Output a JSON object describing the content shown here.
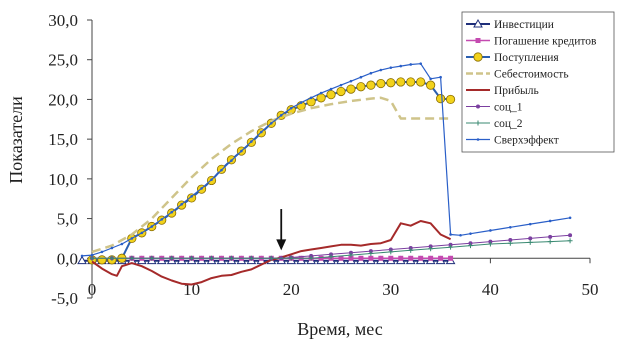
{
  "chart_data": {
    "type": "line",
    "xlabel": "Время, мес",
    "ylabel": "Показатели",
    "xlim": [
      0,
      50
    ],
    "ylim": [
      -5,
      30
    ],
    "x_ticks": [
      {
        "value": 0,
        "label": "0"
      },
      {
        "value": 10,
        "label": "10"
      },
      {
        "value": 20,
        "label": "20"
      },
      {
        "value": 30,
        "label": "30"
      },
      {
        "value": 40,
        "label": "40"
      },
      {
        "value": 50,
        "label": "50"
      }
    ],
    "y_ticks": [
      {
        "value": -5,
        "label": "-5,0"
      },
      {
        "value": 0,
        "label": "0,0"
      },
      {
        "value": 5,
        "label": "5,0"
      },
      {
        "value": 10,
        "label": "10,0"
      },
      {
        "value": 15,
        "label": "15,0"
      },
      {
        "value": 20,
        "label": "20,0"
      },
      {
        "value": 25,
        "label": "25,0"
      },
      {
        "value": 30,
        "label": "30,0"
      }
    ],
    "grid": false,
    "legend_position": "top-right",
    "annotation": {
      "type": "arrow",
      "x": 19,
      "y_from": 6.2,
      "y_to": 1.0
    },
    "series": [
      {
        "name": "Инвестиции",
        "color": "#1f2f7a",
        "style": "solid",
        "marker": "triangle-open",
        "width": 2,
        "points": [
          [
            -1,
            -0.3
          ],
          [
            0,
            -0.3
          ],
          [
            1,
            -0.3
          ],
          [
            2,
            -0.3
          ],
          [
            3,
            -0.3
          ],
          [
            4,
            -0.3
          ],
          [
            5,
            -0.3
          ],
          [
            6,
            -0.3
          ],
          [
            7,
            -0.3
          ],
          [
            8,
            -0.3
          ],
          [
            9,
            -0.3
          ],
          [
            10,
            -0.3
          ],
          [
            11,
            -0.3
          ],
          [
            12,
            -0.3
          ],
          [
            13,
            -0.3
          ],
          [
            14,
            -0.3
          ],
          [
            15,
            -0.3
          ],
          [
            16,
            -0.3
          ],
          [
            17,
            -0.3
          ],
          [
            18,
            -0.3
          ],
          [
            19,
            -0.3
          ],
          [
            20,
            -0.3
          ],
          [
            21,
            -0.3
          ],
          [
            22,
            -0.3
          ],
          [
            23,
            -0.3
          ],
          [
            24,
            -0.3
          ],
          [
            25,
            -0.3
          ],
          [
            26,
            -0.3
          ],
          [
            27,
            -0.3
          ],
          [
            28,
            -0.3
          ],
          [
            29,
            -0.3
          ],
          [
            30,
            -0.3
          ],
          [
            31,
            -0.3
          ],
          [
            32,
            -0.3
          ],
          [
            33,
            -0.3
          ],
          [
            34,
            -0.3
          ],
          [
            35,
            -0.3
          ],
          [
            36,
            -0.3
          ]
        ]
      },
      {
        "name": "Погашение кредитов",
        "color": "#c44ab0",
        "style": "solid",
        "marker": "square",
        "width": 1.5,
        "points": [
          [
            3,
            0
          ],
          [
            4,
            0
          ],
          [
            5,
            0
          ],
          [
            6,
            0
          ],
          [
            7,
            0
          ],
          [
            8,
            0
          ],
          [
            9,
            0
          ],
          [
            10,
            0
          ],
          [
            11,
            0
          ],
          [
            12,
            0
          ],
          [
            13,
            0
          ],
          [
            14,
            0
          ],
          [
            15,
            0
          ],
          [
            16,
            0
          ],
          [
            17,
            0
          ],
          [
            18,
            0
          ],
          [
            19,
            0
          ],
          [
            20,
            0
          ],
          [
            21,
            0
          ],
          [
            22,
            0
          ],
          [
            23,
            0
          ],
          [
            24,
            0
          ],
          [
            25,
            0
          ],
          [
            26,
            0
          ],
          [
            27,
            0
          ],
          [
            28,
            0
          ],
          [
            29,
            0
          ],
          [
            30,
            0
          ],
          [
            31,
            0
          ],
          [
            32,
            0
          ],
          [
            33,
            0
          ],
          [
            34,
            0
          ],
          [
            35,
            0
          ],
          [
            36,
            0
          ]
        ]
      },
      {
        "name": "Поступления",
        "color": "#2a5fb0",
        "style": "solid",
        "marker": "circle-yellow",
        "width": 2,
        "points": [
          [
            0,
            -0.2
          ],
          [
            1,
            -0.2
          ],
          [
            2,
            -0.2
          ],
          [
            3,
            0
          ],
          [
            4,
            2.5
          ],
          [
            5,
            3.2
          ],
          [
            6,
            4
          ],
          [
            7,
            4.8
          ],
          [
            8,
            5.7
          ],
          [
            9,
            6.7
          ],
          [
            10,
            7.6
          ],
          [
            11,
            8.7
          ],
          [
            12,
            9.8
          ],
          [
            13,
            11.2
          ],
          [
            14,
            12.4
          ],
          [
            15,
            13.5
          ],
          [
            16,
            14.6
          ],
          [
            17,
            15.8
          ],
          [
            18,
            17
          ],
          [
            19,
            18
          ],
          [
            20,
            18.7
          ],
          [
            21,
            19.2
          ],
          [
            22,
            19.7
          ],
          [
            23,
            20.2
          ],
          [
            24,
            20.6
          ],
          [
            25,
            21
          ],
          [
            26,
            21.3
          ],
          [
            27,
            21.6
          ],
          [
            28,
            21.8
          ],
          [
            29,
            22
          ],
          [
            30,
            22.1
          ],
          [
            31,
            22.2
          ],
          [
            32,
            22.2
          ],
          [
            33,
            22.2
          ],
          [
            34,
            21.8
          ],
          [
            35,
            20.1
          ],
          [
            36,
            20
          ]
        ]
      },
      {
        "name": "Себестоимость",
        "color": "#cfc48a",
        "style": "dashed",
        "marker": "none",
        "width": 2.5,
        "points": [
          [
            0,
            0.8
          ],
          [
            2,
            1.6
          ],
          [
            4,
            3
          ],
          [
            6,
            5
          ],
          [
            8,
            7.6
          ],
          [
            10,
            10.2
          ],
          [
            12,
            12.5
          ],
          [
            14,
            14.4
          ],
          [
            16,
            16
          ],
          [
            18,
            17.3
          ],
          [
            20,
            18.2
          ],
          [
            22,
            18.9
          ],
          [
            24,
            19.4
          ],
          [
            26,
            19.8
          ],
          [
            28,
            20.1
          ],
          [
            29,
            20.2
          ],
          [
            30,
            19.8
          ],
          [
            31,
            17.6
          ],
          [
            32,
            17.6
          ],
          [
            34,
            17.6
          ],
          [
            36,
            17.6
          ]
        ]
      },
      {
        "name": "Прибыль",
        "color": "#a52a2a",
        "style": "solid",
        "marker": "none",
        "width": 2,
        "points": [
          [
            0,
            -0.4
          ],
          [
            1,
            -1.3
          ],
          [
            2,
            -2
          ],
          [
            2.5,
            -2.2
          ],
          [
            3,
            -1
          ],
          [
            4,
            -0.6
          ],
          [
            5,
            -1
          ],
          [
            6,
            -1.6
          ],
          [
            7,
            -2.3
          ],
          [
            8,
            -2.8
          ],
          [
            9,
            -3.2
          ],
          [
            10,
            -3.3
          ],
          [
            11,
            -3
          ],
          [
            12,
            -2.5
          ],
          [
            13,
            -2.2
          ],
          [
            14,
            -2.1
          ],
          [
            15,
            -1.7
          ],
          [
            16,
            -1.4
          ],
          [
            17,
            -0.8
          ],
          [
            18,
            -0.2
          ],
          [
            19,
            0.1
          ],
          [
            20,
            0.5
          ],
          [
            21,
            0.9
          ],
          [
            22,
            1.1
          ],
          [
            23,
            1.3
          ],
          [
            24,
            1.5
          ],
          [
            25,
            1.7
          ],
          [
            26,
            1.7
          ],
          [
            27,
            1.6
          ],
          [
            28,
            1.8
          ],
          [
            29,
            1.9
          ],
          [
            30,
            2.3
          ],
          [
            31,
            4.4
          ],
          [
            32,
            4.1
          ],
          [
            33,
            4.7
          ],
          [
            34,
            4.4
          ],
          [
            35,
            3
          ],
          [
            36,
            2.4
          ]
        ]
      },
      {
        "name": "соц_1",
        "color": "#7b3fa0",
        "style": "solid",
        "marker": "dot",
        "width": 1,
        "points": [
          [
            0,
            0
          ],
          [
            2,
            0
          ],
          [
            4,
            0
          ],
          [
            6,
            0
          ],
          [
            8,
            0
          ],
          [
            10,
            0
          ],
          [
            12,
            0
          ],
          [
            14,
            0
          ],
          [
            16,
            0
          ],
          [
            18,
            0
          ],
          [
            19,
            0
          ],
          [
            20,
            0.1
          ],
          [
            22,
            0.3
          ],
          [
            24,
            0.5
          ],
          [
            26,
            0.7
          ],
          [
            28,
            0.9
          ],
          [
            30,
            1.1
          ],
          [
            32,
            1.3
          ],
          [
            34,
            1.5
          ],
          [
            36,
            1.7
          ],
          [
            38,
            1.9
          ],
          [
            40,
            2.1
          ],
          [
            42,
            2.3
          ],
          [
            44,
            2.5
          ],
          [
            46,
            2.7
          ],
          [
            48,
            2.9
          ]
        ]
      },
      {
        "name": "соц_2",
        "color": "#3a8a72",
        "style": "solid",
        "marker": "plus",
        "width": 1,
        "points": [
          [
            0,
            0
          ],
          [
            2,
            0
          ],
          [
            4,
            0
          ],
          [
            6,
            0
          ],
          [
            8,
            0
          ],
          [
            10,
            0
          ],
          [
            12,
            0
          ],
          [
            14,
            0
          ],
          [
            16,
            0
          ],
          [
            18,
            0
          ],
          [
            20,
            0
          ],
          [
            22,
            0
          ],
          [
            24,
            0.2
          ],
          [
            26,
            0.4
          ],
          [
            28,
            0.6
          ],
          [
            30,
            0.8
          ],
          [
            32,
            1
          ],
          [
            34,
            1.2
          ],
          [
            36,
            1.4
          ],
          [
            38,
            1.6
          ],
          [
            40,
            1.8
          ],
          [
            42,
            1.9
          ],
          [
            44,
            2
          ],
          [
            46,
            2.1
          ],
          [
            48,
            2.2
          ]
        ]
      },
      {
        "name": "Сверхэффект",
        "color": "#2a5fc8",
        "style": "solid",
        "marker": "small-dot",
        "width": 1.2,
        "points": [
          [
            -1,
            0.3
          ],
          [
            0,
            0.4
          ],
          [
            1,
            0.8
          ],
          [
            2,
            1.3
          ],
          [
            3,
            1.8
          ],
          [
            4,
            2.5
          ],
          [
            5,
            3.2
          ],
          [
            6,
            4
          ],
          [
            7,
            4.9
          ],
          [
            8,
            5.8
          ],
          [
            9,
            6.8
          ],
          [
            10,
            7.8
          ],
          [
            11,
            8.8
          ],
          [
            12,
            9.9
          ],
          [
            13,
            11.1
          ],
          [
            14,
            12.3
          ],
          [
            15,
            13.5
          ],
          [
            16,
            14.7
          ],
          [
            17,
            15.9
          ],
          [
            18,
            17
          ],
          [
            19,
            18
          ],
          [
            20,
            18.9
          ],
          [
            21,
            19.6
          ],
          [
            22,
            20.2
          ],
          [
            23,
            20.8
          ],
          [
            24,
            21.3
          ],
          [
            25,
            21.8
          ],
          [
            26,
            22.3
          ],
          [
            27,
            22.8
          ],
          [
            28,
            23.3
          ],
          [
            29,
            23.7
          ],
          [
            30,
            24
          ],
          [
            31,
            24.2
          ],
          [
            32,
            24.4
          ],
          [
            33,
            24.5
          ],
          [
            34,
            22.6
          ],
          [
            35,
            22.8
          ],
          [
            36,
            3
          ],
          [
            37,
            2.9
          ],
          [
            38,
            3.1
          ],
          [
            40,
            3.5
          ],
          [
            42,
            3.9
          ],
          [
            44,
            4.3
          ],
          [
            46,
            4.7
          ],
          [
            48,
            5.1
          ]
        ]
      }
    ]
  }
}
